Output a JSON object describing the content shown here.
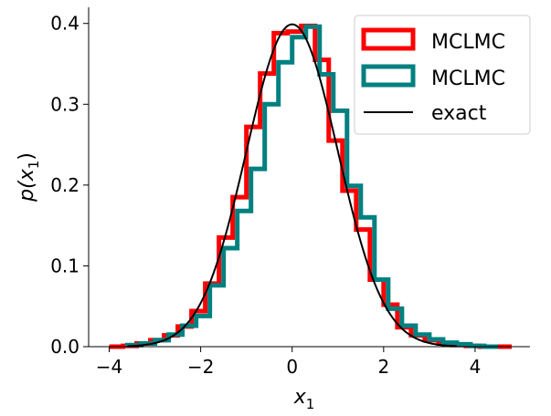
{
  "chart_data": {
    "type": "histogram",
    "xlabel": "x",
    "xlabel_sub": "1",
    "ylabel_main": "p(x",
    "ylabel_sub": "1",
    "ylabel_close": ")",
    "xlim": [
      -4.45,
      5.2
    ],
    "ylim": [
      0,
      0.42
    ],
    "xticks": [
      -4,
      -2,
      0,
      2,
      4
    ],
    "xtick_labels": [
      "−4",
      "−2",
      "0",
      "2",
      "4"
    ],
    "yticks": [
      0.0,
      0.1,
      0.2,
      0.3,
      0.4
    ],
    "ytick_labels": [
      "0.0",
      "0.1",
      "0.2",
      "0.3",
      "0.4"
    ],
    "legend_position": "top-right",
    "legend": [
      {
        "label": "MCLMC",
        "color": "#ff0000",
        "kind": "patch"
      },
      {
        "label": "MCLMC",
        "color": "#008080",
        "kind": "patch"
      },
      {
        "label": "exact",
        "color": "#000000",
        "kind": "line"
      }
    ],
    "series": [
      {
        "name": "MCLMC",
        "color": "#ff0000",
        "style": "step",
        "edges": [
          -4.0,
          -3.7,
          -3.4,
          -3.1,
          -2.8,
          -2.5,
          -2.2,
          -1.9,
          -1.6,
          -1.3,
          -1.0,
          -0.7,
          -0.4,
          -0.1,
          0.2,
          0.5,
          0.8,
          1.1,
          1.4,
          1.7,
          2.0,
          2.3,
          2.6,
          2.9,
          3.2,
          3.5,
          3.8,
          4.1,
          4.4,
          4.8
        ],
        "values": [
          0.0,
          0.001,
          0.004,
          0.008,
          0.014,
          0.025,
          0.044,
          0.078,
          0.135,
          0.185,
          0.272,
          0.338,
          0.388,
          0.39,
          0.397,
          0.355,
          0.255,
          0.193,
          0.145,
          0.083,
          0.052,
          0.024,
          0.014,
          0.008,
          0.004,
          0.002,
          0.001,
          0.0,
          0.0
        ]
      },
      {
        "name": "MCLMC",
        "color": "#008080",
        "style": "step",
        "edges": [
          -3.6,
          -3.3,
          -3.0,
          -2.7,
          -2.4,
          -2.1,
          -1.8,
          -1.5,
          -1.2,
          -0.9,
          -0.6,
          -0.3,
          0.0,
          0.3,
          0.6,
          0.9,
          1.2,
          1.5,
          1.8,
          2.1,
          2.4,
          2.7,
          3.0,
          3.3,
          3.6,
          3.9,
          4.2,
          4.5
        ],
        "values": [
          0.002,
          0.004,
          0.008,
          0.015,
          0.026,
          0.038,
          0.076,
          0.122,
          0.168,
          0.22,
          0.3,
          0.352,
          0.383,
          0.396,
          0.337,
          0.292,
          0.199,
          0.16,
          0.083,
          0.047,
          0.026,
          0.015,
          0.009,
          0.005,
          0.003,
          0.001,
          0.0
        ]
      },
      {
        "name": "exact",
        "color": "#000000",
        "style": "line",
        "function": "standard_normal_pdf",
        "x_range": [
          -3.6,
          3.6
        ]
      }
    ]
  }
}
